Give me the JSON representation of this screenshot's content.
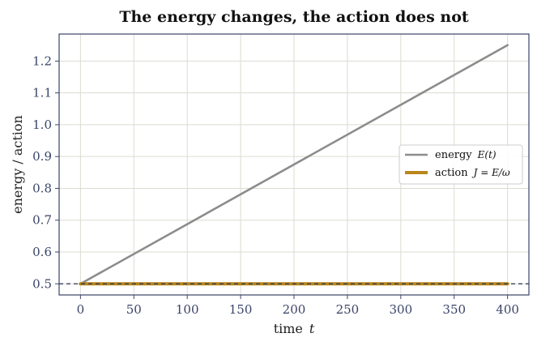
{
  "chart_data": {
    "type": "line",
    "title": "The energy changes, the action does not",
    "xlabel": "time",
    "xlabel_symbol": "t",
    "ylabel": "energy / action",
    "xlim": [
      -20,
      420
    ],
    "ylim": [
      0.465,
      1.285
    ],
    "x_ticks": [
      0,
      50,
      100,
      150,
      200,
      250,
      300,
      350,
      400
    ],
    "y_ticks": [
      0.5,
      0.6,
      0.7,
      0.8,
      0.9,
      1.0,
      1.1,
      1.2
    ],
    "grid": true,
    "legend_position": "center-right",
    "series": [
      {
        "name": "energy",
        "name_math": "E(t)",
        "color": "#8c8c8c",
        "x": [
          0,
          400
        ],
        "y": [
          0.5,
          1.25
        ]
      },
      {
        "name": "action",
        "name_math": "J = E/ω",
        "color": "#b8861b",
        "x": [
          0,
          400
        ],
        "y": [
          0.5,
          0.5
        ]
      }
    ],
    "reference_line": {
      "y": 0.5,
      "style": "dashed",
      "color": "#2a3550"
    }
  }
}
